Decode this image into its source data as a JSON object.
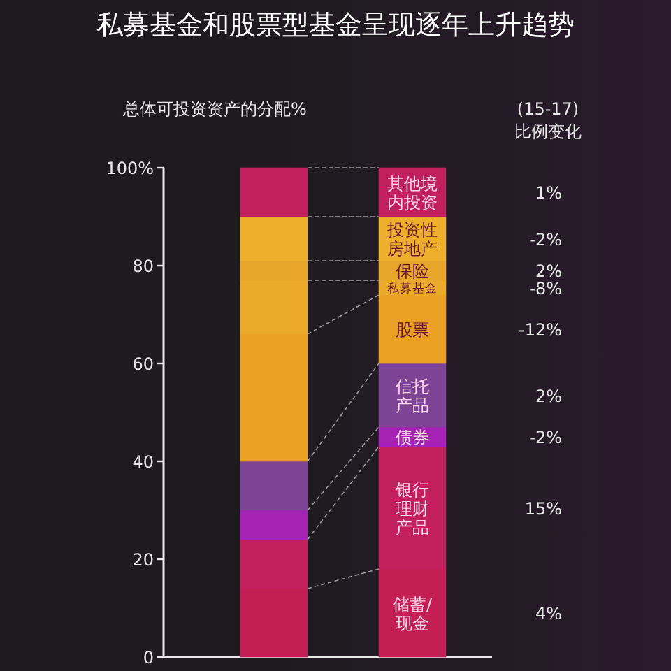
{
  "chart_data": {
    "type": "bar",
    "stacked": true,
    "title": "私募基金和股票型基金呈现逐年上升趋势",
    "ylabel": "总体可投资资产的分配%",
    "categories": [
      null,
      null
    ],
    "ylim": [
      0,
      100
    ],
    "yticks": [
      0,
      20,
      40,
      60,
      80,
      {
        "value": 100,
        "label": "100%"
      }
    ],
    "tick_labels": "y",
    "grid": false,
    "series": [
      {
        "name": "储蓄/现金",
        "color": "#c41f55",
        "values": [
          14,
          18
        ]
      },
      {
        "name": "银行理财产品",
        "color": "#c2205c",
        "values": [
          10,
          25
        ]
      },
      {
        "name": "债券",
        "color": "#a423b4",
        "values": [
          6,
          4
        ]
      },
      {
        "name": "信托产品",
        "color": "#7d4496",
        "values": [
          10,
          13
        ]
      },
      {
        "name": "股票",
        "color": "#e9a023",
        "values": [
          26,
          14
        ]
      },
      {
        "name": "私募基金",
        "color": "#ecaa2a",
        "values": [
          11,
          3
        ]
      },
      {
        "name": "保险",
        "color": "#e7a52a",
        "values": [
          4,
          4
        ]
      },
      {
        "name": "投资性房地产",
        "color": "#eeb02c",
        "values": [
          9,
          9
        ]
      },
      {
        "name": "其他境内投资",
        "color": "#c21f5e",
        "values": [
          10,
          10
        ]
      }
    ],
    "annotations": [
      "(15-17)\n比例变化",
      "4%",
      "15%",
      "-2%",
      "2%",
      "-12%",
      "-8%",
      "2%",
      "-2%",
      "1%"
    ]
  }
}
